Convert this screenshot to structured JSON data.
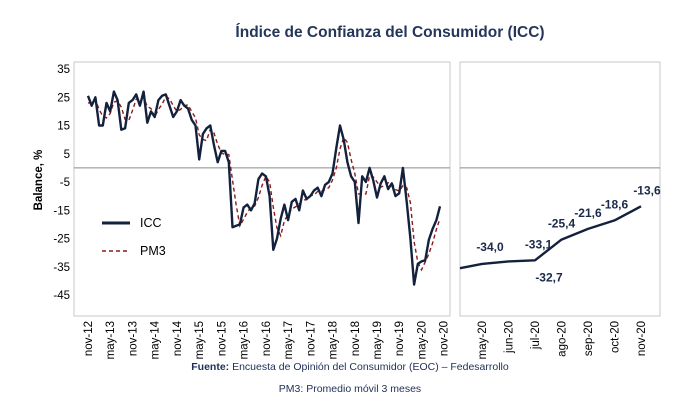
{
  "colors": {
    "icc": "#14213d",
    "pm3": "#8b1a1a",
    "frame": "#c9c9c9",
    "zero_line": "#8a8a8a",
    "title": "#24365a"
  },
  "chart_data": [
    {
      "type": "line",
      "title": "Índice de Confianza del Consumidor (ICC)",
      "ylabel": "Balance, %",
      "xlabel": "",
      "ylim": [
        -45,
        35
      ],
      "yticks": [
        35,
        25,
        15,
        5,
        -5,
        -15,
        -25,
        -35,
        -45
      ],
      "grid": false,
      "legend_position": "left-lower",
      "x_start": "nov-12",
      "x_step_months": 1,
      "x_tick_labels": [
        "nov-12",
        "may-13",
        "nov-13",
        "may-14",
        "nov-14",
        "may-15",
        "nov-15",
        "may-16",
        "nov-16",
        "may-17",
        "nov-17",
        "may-18",
        "nov-18",
        "may-19",
        "nov-19",
        "may-20",
        "nov-20"
      ],
      "series": [
        {
          "name": "ICC",
          "style": "solid",
          "values": [
            25.5,
            22.0,
            25.0,
            15.0,
            15.0,
            23.0,
            20.0,
            27.0,
            24.0,
            13.5,
            14.0,
            23.0,
            24.0,
            26.0,
            22.0,
            27.0,
            16.0,
            20.0,
            18.0,
            24.0,
            25.5,
            26.0,
            22.0,
            18.0,
            20.0,
            24.0,
            22.0,
            21.0,
            17.0,
            15.0,
            3.0,
            12.0,
            14.0,
            15.0,
            8.0,
            2.0,
            6.0,
            6.0,
            2.0,
            -21.0,
            -20.5,
            -20.0,
            -14.0,
            -13.0,
            -15.0,
            -12.5,
            -4.0,
            -2.0,
            -3.0,
            -10.0,
            -29.0,
            -25.0,
            -18.0,
            -13.0,
            -18.5,
            -12.0,
            -11.0,
            -15.0,
            -8.0,
            -11.0,
            -10.0,
            -8.0,
            -7.0,
            -10.0,
            -6.0,
            -5.0,
            -2.0,
            7.0,
            15.0,
            10.0,
            2.0,
            -3.0,
            -5.0,
            -19.5,
            -3.0,
            -5.0,
            0.0,
            -4.5,
            -10.5,
            -5.5,
            -3.0,
            -7.5,
            -5.5,
            -10.0,
            -9.0,
            0.0,
            -12.0,
            -25.0,
            -41.3,
            -34.0,
            -33.1,
            -32.7,
            -25.4,
            -21.6,
            -18.6,
            -13.6
          ]
        },
        {
          "name": "PM3",
          "style": "dashed",
          "values": [
            23.0,
            23.0,
            24.2,
            20.7,
            18.3,
            17.7,
            19.3,
            23.3,
            23.7,
            21.5,
            17.2,
            16.8,
            20.3,
            24.3,
            24.0,
            25.0,
            21.7,
            21.0,
            18.0,
            20.7,
            22.5,
            25.2,
            24.5,
            22.0,
            20.0,
            20.7,
            22.0,
            22.3,
            20.0,
            17.7,
            11.7,
            10.0,
            9.7,
            13.7,
            12.3,
            8.3,
            5.3,
            4.7,
            4.7,
            -4.3,
            -13.2,
            -20.5,
            -18.2,
            -15.7,
            -14.0,
            -13.5,
            -10.5,
            -6.2,
            -3.0,
            -5.0,
            -14.0,
            -21.3,
            -24.0,
            -18.7,
            -16.5,
            -14.5,
            -13.8,
            -12.7,
            -11.3,
            -11.3,
            -9.7,
            -9.7,
            -8.3,
            -8.3,
            -7.7,
            -7.0,
            -4.3,
            0.0,
            6.7,
            10.7,
            9.0,
            3.0,
            -2.0,
            -9.2,
            -9.2,
            -9.2,
            -2.7,
            -3.2,
            -5.0,
            -6.8,
            -6.3,
            -5.3,
            -5.3,
            -7.7,
            -8.2,
            -6.3,
            -7.0,
            -12.3,
            -26.1,
            -33.4,
            -36.1,
            -33.3,
            -30.4,
            -26.6,
            -21.9,
            -17.9
          ]
        }
      ]
    },
    {
      "type": "line",
      "title": "",
      "xlabel": "",
      "ylabel": "",
      "ylim": [
        -45,
        35
      ],
      "grid": false,
      "categories": [
        "may-20",
        "jun-20",
        "jul-20",
        "ago-20",
        "sep-20",
        "oct-20",
        "nov-20"
      ],
      "series": [
        {
          "name": "ICC",
          "style": "solid",
          "values": [
            -34.0,
            -33.1,
            -32.7,
            -25.4,
            -21.6,
            -18.6,
            -13.6
          ],
          "labels": [
            "-34,0",
            "-33,1",
            "-32,7",
            "-25,4",
            "-21,6",
            "-18,6",
            "-13,6"
          ]
        }
      ]
    }
  ],
  "footer": {
    "source_label": "Fuente:",
    "source_text": "Encuesta de Opinión del Consumidor (EOC) – Fedesarrollo",
    "note": "PM3: Promedio móvil 3 meses"
  }
}
